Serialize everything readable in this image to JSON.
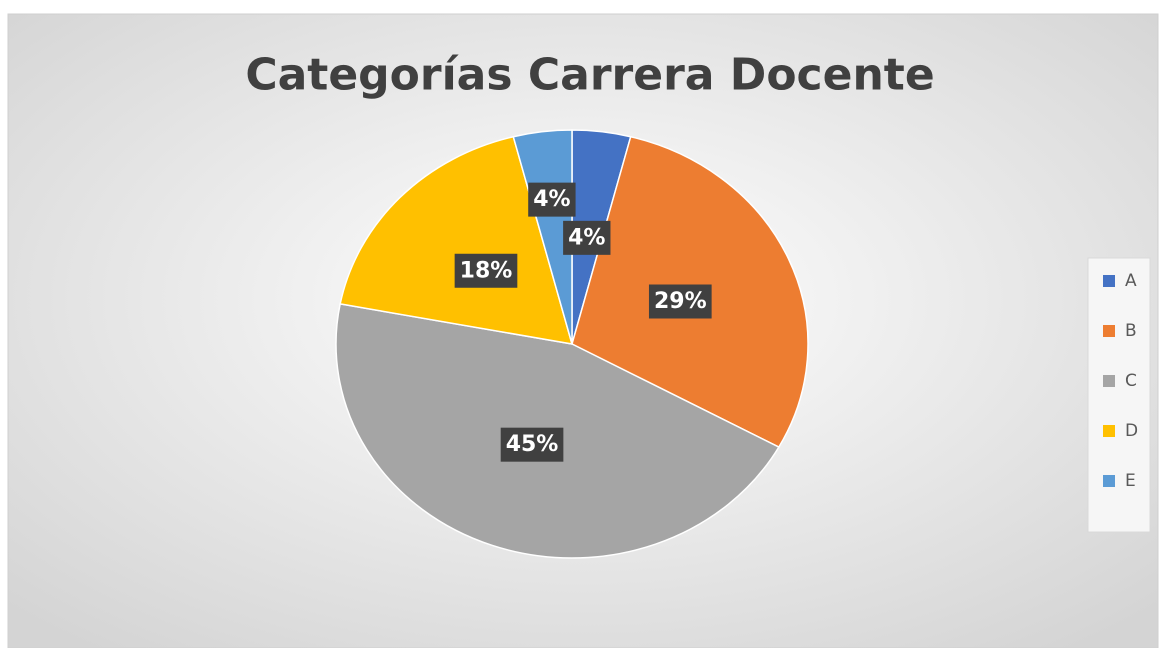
{
  "chart_data": {
    "type": "pie",
    "title": "Categorías Carrera Docente",
    "categories": [
      "A",
      "B",
      "C",
      "D",
      "E"
    ],
    "values": [
      4,
      29,
      45,
      18,
      4
    ],
    "value_labels": [
      "4%",
      "29%",
      "45%",
      "18%",
      "4%"
    ],
    "colors": [
      "#4472c4",
      "#ed7d31",
      "#a5a5a5",
      "#ffc000",
      "#5b9bd5"
    ],
    "legend": "right"
  }
}
